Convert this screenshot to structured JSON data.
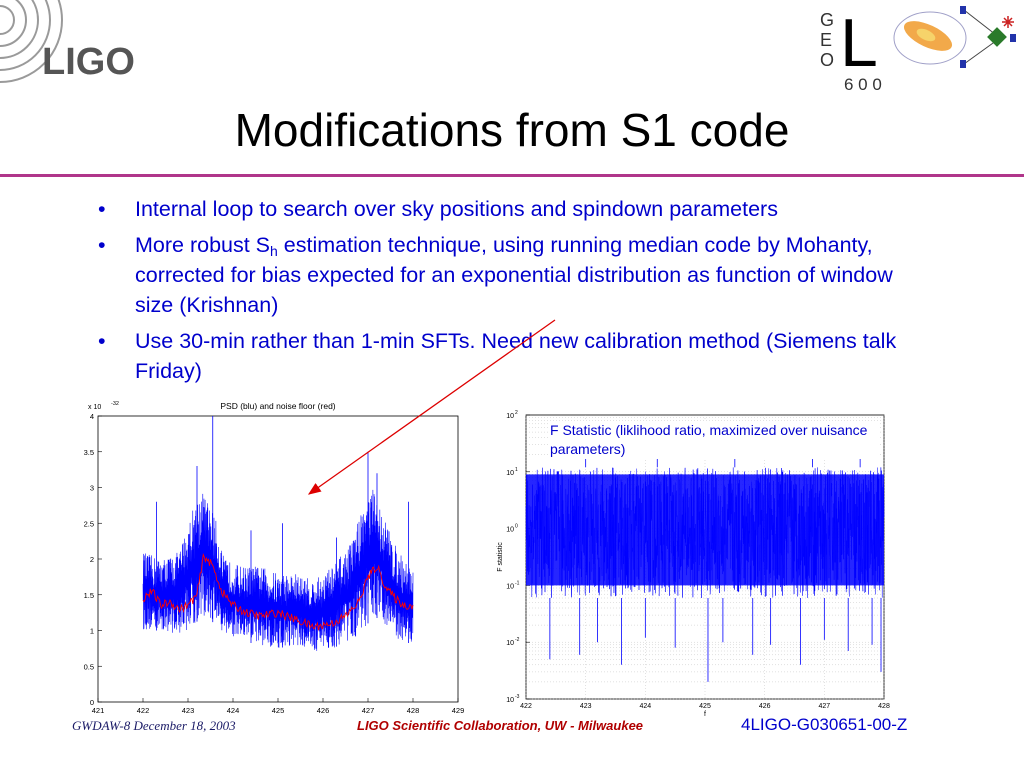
{
  "header": {
    "logo_text": "LIGO",
    "geo_logo": {
      "letters": [
        "G",
        "E",
        "O"
      ],
      "big_letter": "L",
      "number": "6 0 0"
    }
  },
  "slide": {
    "title": "Modifications from S1 code",
    "bullet_glyph": "•",
    "bullets": [
      {
        "text": "Internal loop to search over sky positions and spindown parameters"
      },
      {
        "before": "More robust S",
        "sub": "h",
        "after": " estimation technique, using running median code by Mohanty, corrected for bias expected for an exponential distribution as function of window size (Krishnan)"
      },
      {
        "text": "Use 30-min rather than 1-min SFTs.  Need new calibration method (Siemens talk Friday)"
      }
    ]
  },
  "footer": {
    "left": "GWDAW-8 December 18, 2003",
    "center": "LIGO Scientific Collaboration,  UW - Milwaukee",
    "right": "4LIGO-G030651-00-Z"
  },
  "chart_data": [
    {
      "type": "line",
      "title": "PSD (blu) and noise floor (red)",
      "exponent_label": "x 10",
      "exponent_sup": "-32",
      "xlim": [
        421,
        429
      ],
      "ylim": [
        0,
        4
      ],
      "x_ticks": [
        "421",
        "422",
        "423",
        "424",
        "425",
        "426",
        "427",
        "428",
        "429"
      ],
      "y_ticks": [
        "0",
        "0.5",
        "1",
        "1.5",
        "2",
        "2.5",
        "3",
        "3.5",
        "4"
      ],
      "series": [
        {
          "color": "#0000ff",
          "x": [
            422.0,
            422.4,
            422.8,
            423.1,
            423.3,
            423.6,
            423.8,
            424.2,
            424.6,
            425.0,
            425.4,
            425.8,
            426.2,
            426.6,
            426.9,
            427.1,
            427.3,
            427.6,
            427.8,
            428.0
          ],
          "lower": [
            1.0,
            1.0,
            0.95,
            1.05,
            1.2,
            1.1,
            0.95,
            0.85,
            0.8,
            0.75,
            0.8,
            0.7,
            0.75,
            0.85,
            1.0,
            1.2,
            1.15,
            0.9,
            0.85,
            0.8
          ],
          "upper": [
            2.1,
            2.0,
            2.1,
            2.7,
            3.0,
            2.6,
            2.0,
            1.9,
            1.9,
            1.8,
            1.8,
            1.7,
            1.9,
            2.2,
            2.8,
            3.0,
            2.7,
            2.2,
            2.0,
            1.9
          ],
          "spikes": [
            [
              423.55,
              4.0
            ],
            [
              423.2,
              3.3
            ],
            [
              422.3,
              2.8
            ],
            [
              427.0,
              3.5
            ],
            [
              427.2,
              3.2
            ],
            [
              425.1,
              2.5
            ],
            [
              427.9,
              2.8
            ],
            [
              426.3,
              2.3
            ],
            [
              424.4,
              2.4
            ]
          ]
        },
        {
          "color": "#ff0000",
          "x": [
            422.0,
            422.2,
            422.4,
            422.6,
            422.8,
            423.0,
            423.2,
            423.35,
            423.55,
            423.75,
            424.0,
            424.3,
            424.6,
            425.0,
            425.4,
            425.8,
            426.2,
            426.5,
            426.8,
            427.0,
            427.2,
            427.4,
            427.6,
            427.8,
            428.0
          ],
          "y": [
            1.45,
            1.55,
            1.35,
            1.4,
            1.3,
            1.35,
            1.5,
            2.05,
            1.9,
            1.55,
            1.35,
            1.25,
            1.2,
            1.25,
            1.15,
            1.05,
            1.1,
            1.2,
            1.4,
            1.75,
            1.9,
            1.6,
            1.45,
            1.35,
            1.35
          ]
        }
      ]
    },
    {
      "type": "line",
      "title": "F Statistic (liklihood ratio, maximized over nuisance parameters)",
      "ylabel": "F statistic",
      "xlabel": "f",
      "log_y": true,
      "xlim": [
        422,
        428
      ],
      "ylim": [
        0.001,
        100
      ],
      "x_ticks": [
        "422",
        "423",
        "424",
        "425",
        "426",
        "427",
        "428"
      ],
      "y_ticks": [
        {
          "value": 0.001,
          "base": "10",
          "exp": "-3"
        },
        {
          "value": 0.01,
          "base": "10",
          "exp": "-2"
        },
        {
          "value": 0.1,
          "base": "10",
          "exp": "-1"
        },
        {
          "value": 1,
          "base": "10",
          "exp": "0"
        },
        {
          "value": 10,
          "base": "10",
          "exp": "1"
        },
        {
          "value": 100,
          "base": "10",
          "exp": "2"
        }
      ],
      "series": [
        {
          "color": "#0000ff",
          "band": [
            0.06,
            12
          ],
          "dense_band": [
            0.1,
            9
          ],
          "low_spikes": [
            [
              422.4,
              0.005
            ],
            [
              422.9,
              0.006
            ],
            [
              423.2,
              0.01
            ],
            [
              423.6,
              0.004
            ],
            [
              424.0,
              0.012
            ],
            [
              424.5,
              0.008
            ],
            [
              425.05,
              0.002
            ],
            [
              425.3,
              0.01
            ],
            [
              425.8,
              0.006
            ],
            [
              426.1,
              0.009
            ],
            [
              426.6,
              0.004
            ],
            [
              427.0,
              0.011
            ],
            [
              427.4,
              0.007
            ],
            [
              427.8,
              0.009
            ],
            [
              427.95,
              0.003
            ]
          ],
          "high_spikes": [
            [
              423.0,
              30
            ],
            [
              424.2,
              25
            ],
            [
              425.5,
              22
            ],
            [
              426.8,
              28
            ],
            [
              427.6,
              20
            ]
          ]
        }
      ]
    }
  ]
}
